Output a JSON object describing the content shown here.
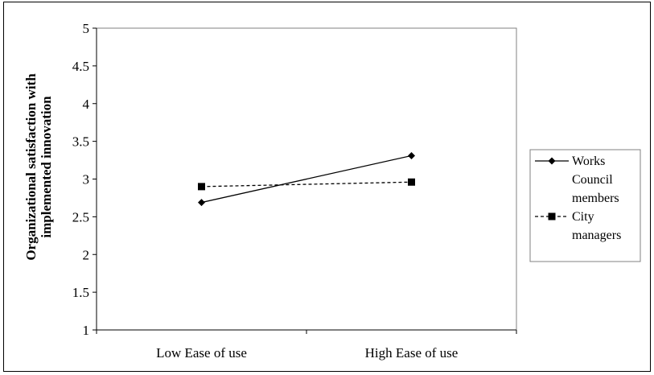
{
  "chart_data": {
    "type": "line",
    "title": "",
    "xlabel": "",
    "ylabel": "Organizational satisfaction with implemented innovation",
    "categories": [
      "Low Ease of use",
      "High Ease of use"
    ],
    "ylim": [
      1,
      5
    ],
    "yticks": [
      "1",
      "1.5",
      "2",
      "2.5",
      "3",
      "3.5",
      "4",
      "4.5",
      "5"
    ],
    "grid": false,
    "legend_position": "right",
    "series": [
      {
        "name": "Works Council members",
        "legend_lines": [
          "Works",
          "Council",
          "members"
        ],
        "values": [
          2.69,
          3.31
        ],
        "marker": "diamond",
        "line_style": "solid",
        "color": "#000000"
      },
      {
        "name": "City managers",
        "legend_lines": [
          "City",
          "managers"
        ],
        "values": [
          2.9,
          2.96
        ],
        "marker": "square",
        "line_style": "dashed",
        "color": "#000000"
      }
    ]
  }
}
